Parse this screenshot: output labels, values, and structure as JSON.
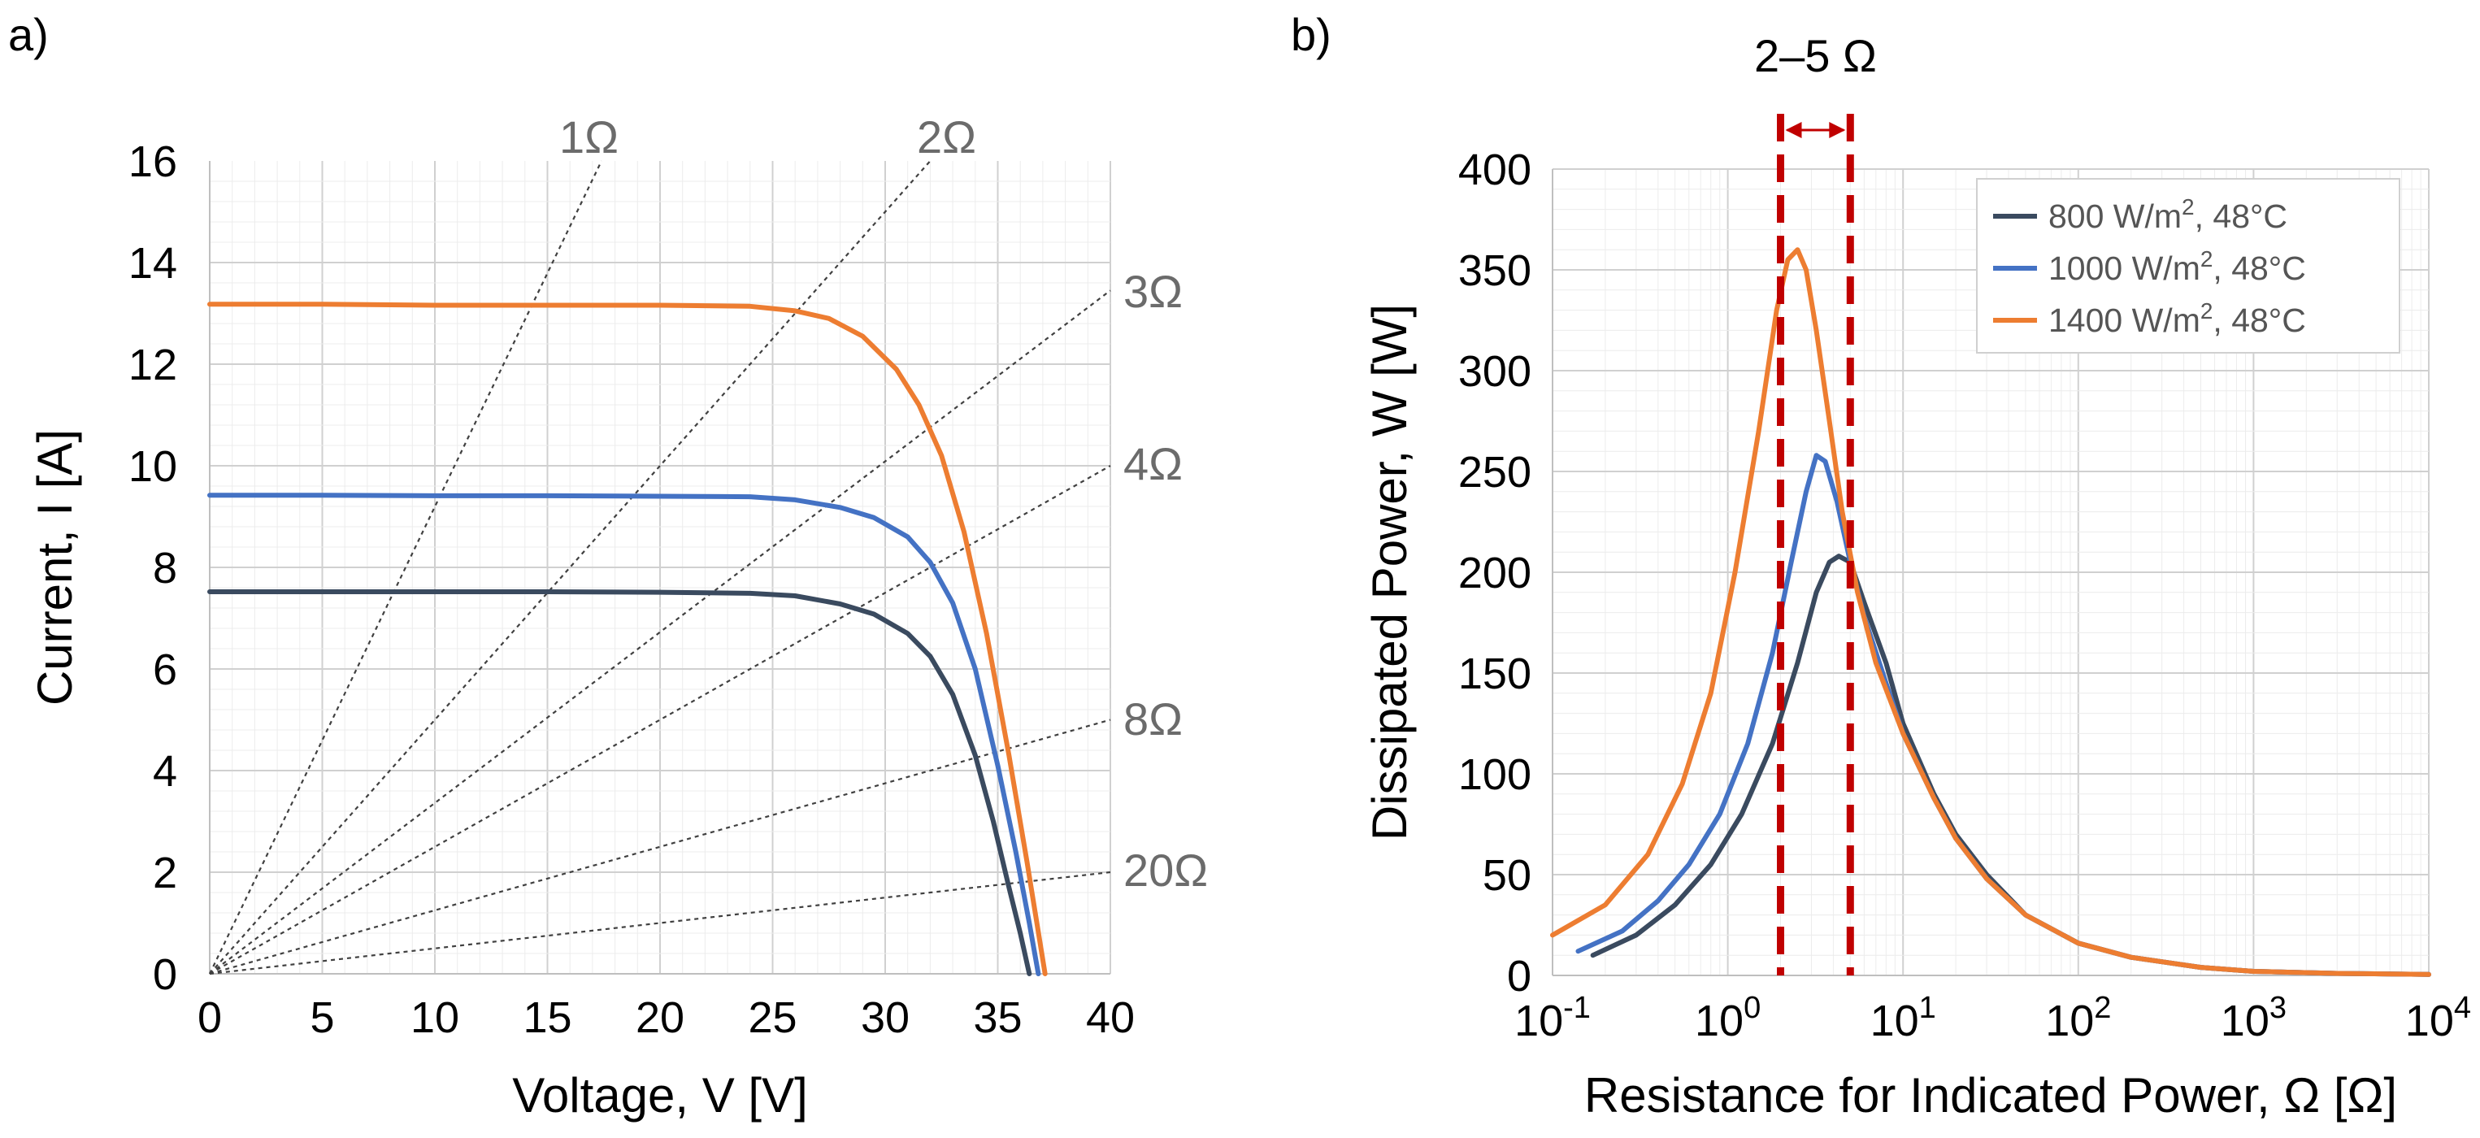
{
  "chart_data": [
    {
      "panel": "a)",
      "type": "line",
      "xlabel": "Voltage, V [V]",
      "ylabel": "Current, I [A]",
      "xlim": [
        0,
        40
      ],
      "ylim": [
        0,
        16
      ],
      "xticks": [
        0,
        5,
        10,
        15,
        20,
        25,
        30,
        35,
        40
      ],
      "yticks": [
        0,
        2,
        4,
        6,
        8,
        10,
        12,
        14,
        16
      ],
      "grid": true,
      "series": [
        {
          "name": "800 W/m2, 48°C",
          "color": "#3a4a5f",
          "x": [
            0,
            5,
            10,
            15,
            20,
            24,
            26,
            28,
            29.5,
            31,
            32,
            33,
            34,
            34.8,
            35.5,
            36,
            36.4
          ],
          "y": [
            7.52,
            7.52,
            7.52,
            7.52,
            7.51,
            7.49,
            7.44,
            7.28,
            7.08,
            6.7,
            6.25,
            5.5,
            4.3,
            3.0,
            1.7,
            0.8,
            0
          ]
        },
        {
          "name": "1000 W/m2, 48°C",
          "color": "#4472c4",
          "x": [
            0,
            5,
            10,
            15,
            20,
            24,
            26,
            28,
            29.5,
            31,
            32,
            33,
            34,
            35,
            35.8,
            36.4,
            36.8
          ],
          "y": [
            9.42,
            9.42,
            9.41,
            9.41,
            9.4,
            9.39,
            9.33,
            9.18,
            8.98,
            8.6,
            8.1,
            7.3,
            6.0,
            4.1,
            2.4,
            1.0,
            0
          ]
        },
        {
          "name": "1400 W/m2, 48°C",
          "color": "#ed7d31",
          "x": [
            0,
            5,
            10,
            15,
            20,
            24,
            26,
            27.5,
            29,
            30.5,
            31.5,
            32.5,
            33.5,
            34.5,
            35.5,
            36.3,
            37.1
          ],
          "y": [
            13.18,
            13.18,
            13.16,
            13.16,
            13.16,
            13.14,
            13.05,
            12.9,
            12.55,
            11.9,
            11.2,
            10.2,
            8.7,
            6.7,
            4.3,
            2.2,
            0
          ]
        }
      ],
      "resistance_lines": [
        {
          "label": "1Ω",
          "ohms": 1
        },
        {
          "label": "2Ω",
          "ohms": 2
        },
        {
          "label": "3Ω",
          "ohms": 3
        },
        {
          "label": "4Ω",
          "ohms": 4
        },
        {
          "label": "8Ω",
          "ohms": 8
        },
        {
          "label": "20Ω",
          "ohms": 20
        }
      ]
    },
    {
      "panel": "b)",
      "type": "line",
      "xscale": "log",
      "xlabel": "Resistance for Indicated Power, Ω [Ω]",
      "ylabel": "Dissipated Power, W [W]",
      "xlim": [
        0.1,
        10000
      ],
      "ylim": [
        0,
        400
      ],
      "xtick_bases": [
        "10",
        "10",
        "10",
        "10",
        "10",
        "10"
      ],
      "xtick_exponents": [
        "-1",
        "0",
        "1",
        "2",
        "3",
        "4"
      ],
      "yticks": [
        0,
        50,
        100,
        150,
        200,
        250,
        300,
        350,
        400
      ],
      "grid": true,
      "legend_position": "top-right",
      "series": [
        {
          "name": "800 W/m², 48°C",
          "name_main": "800 W/m",
          "name_sup": "2",
          "name_tail": ", 48°C",
          "color": "#3a4a5f",
          "x": [
            0.17,
            0.3,
            0.5,
            0.8,
            1.2,
            1.8,
            2.5,
            3.2,
            3.8,
            4.3,
            5,
            6,
            8,
            10,
            15,
            20,
            30,
            50,
            100,
            200,
            500,
            1000,
            3000,
            10000
          ],
          "y": [
            10,
            20,
            35,
            55,
            80,
            115,
            155,
            190,
            205,
            208,
            205,
            185,
            155,
            125,
            90,
            70,
            50,
            30,
            16,
            9,
            4,
            2,
            1,
            0.5
          ]
        },
        {
          "name": "1000 W/m², 48°C",
          "name_main": "1000 W/m",
          "name_sup": "2",
          "name_tail": ", 48°C",
          "color": "#4472c4",
          "x": [
            0.14,
            0.25,
            0.4,
            0.6,
            0.9,
            1.3,
            1.8,
            2.3,
            2.8,
            3.2,
            3.6,
            4.2,
            5,
            6,
            8,
            10,
            15,
            20,
            30,
            50,
            100,
            200,
            500,
            1000,
            3000,
            10000
          ],
          "y": [
            12,
            22,
            37,
            55,
            80,
            115,
            160,
            205,
            240,
            258,
            255,
            235,
            205,
            178,
            145,
            120,
            88,
            68,
            48,
            30,
            16,
            9,
            4,
            2,
            1,
            0.5
          ]
        },
        {
          "name": "1400 W/m², 48°C",
          "name_main": "1400 W/m",
          "name_sup": "2",
          "name_tail": ", 48°C",
          "color": "#ed7d31",
          "x": [
            0.1,
            0.2,
            0.35,
            0.55,
            0.8,
            1.1,
            1.5,
            1.9,
            2.2,
            2.5,
            2.8,
            3.2,
            3.8,
            4.5,
            5.5,
            7,
            10,
            15,
            20,
            30,
            50,
            100,
            200,
            500,
            1000,
            3000,
            10000
          ],
          "y": [
            20,
            35,
            60,
            95,
            140,
            200,
            270,
            330,
            355,
            360,
            350,
            320,
            275,
            230,
            190,
            155,
            120,
            88,
            68,
            48,
            30,
            16,
            9,
            4,
            2,
            1,
            0.5
          ]
        }
      ],
      "highlight_band": {
        "label": "2–5 Ω",
        "x_low": 2,
        "x_high": 5,
        "color": "#c00000"
      }
    }
  ]
}
